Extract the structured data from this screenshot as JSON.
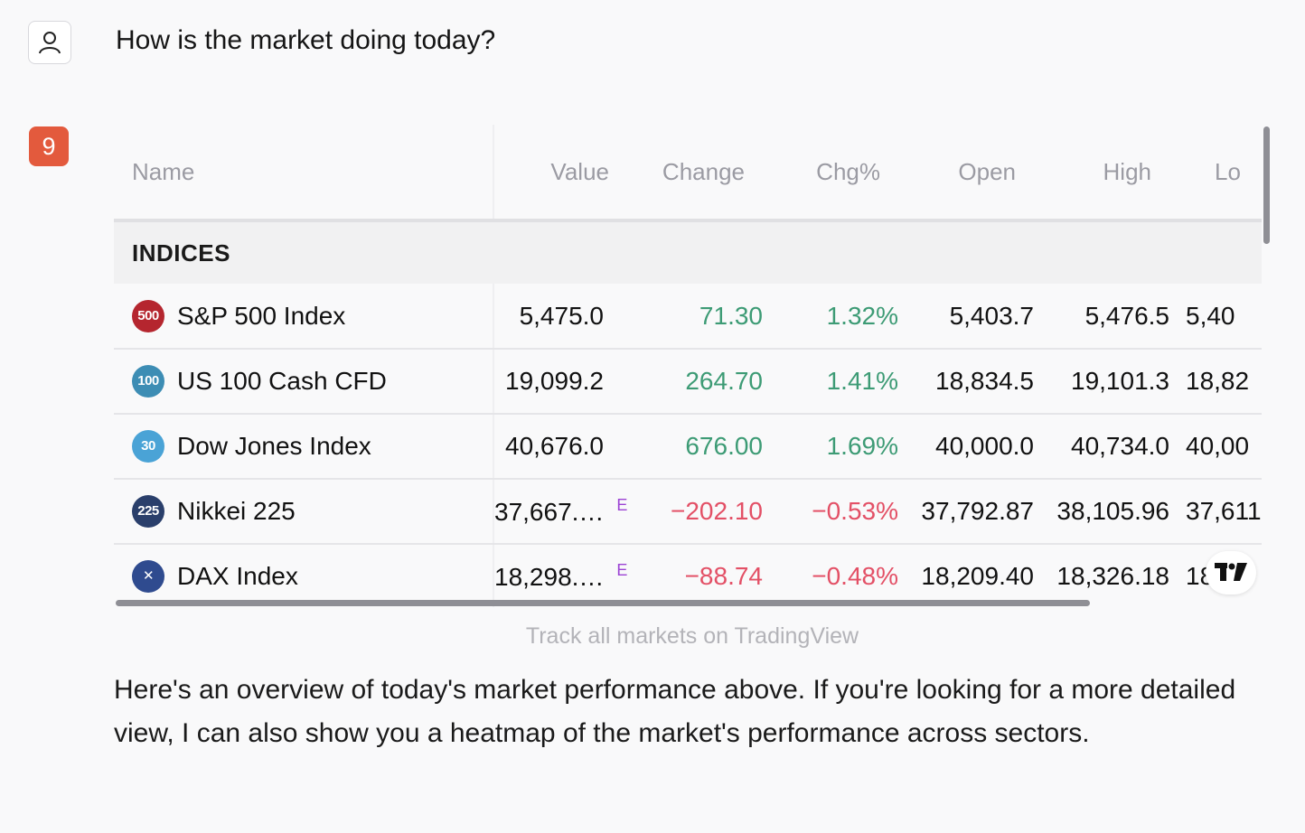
{
  "user": {
    "avatar_icon": "user-icon",
    "question": "How is the market doing today?"
  },
  "assistant": {
    "badge_label": "9"
  },
  "widget": {
    "columns": [
      "Name",
      "Value",
      "Change",
      "Chg%",
      "Open",
      "High",
      "Lo"
    ],
    "group_label": "INDICES",
    "rows": [
      {
        "symbol": "500",
        "symbol_color": "#b5262f",
        "name": "S&P 500 Index",
        "value": "5,475.0",
        "e": "",
        "change": "71.30",
        "chg_pct": "1.32%",
        "open": "5,403.7",
        "high": "5,476.5",
        "low": "5,40",
        "dir": "pos"
      },
      {
        "symbol": "100",
        "symbol_color": "#3d8db4",
        "name": "US 100 Cash CFD",
        "value": "19,099.2",
        "e": "",
        "change": "264.70",
        "chg_pct": "1.41%",
        "open": "18,834.5",
        "high": "19,101.3",
        "low": "18,82",
        "dir": "pos"
      },
      {
        "symbol": "30",
        "symbol_color": "#4aa3d6",
        "name": "Dow Jones Index",
        "value": "40,676.0",
        "e": "",
        "change": "676.00",
        "chg_pct": "1.69%",
        "open": "40,000.0",
        "high": "40,734.0",
        "low": "40,00",
        "dir": "pos"
      },
      {
        "symbol": "225",
        "symbol_color": "#2a3f6b",
        "name": "Nikkei 225",
        "value": "37,667.…",
        "e": "E",
        "change": "−202.10",
        "chg_pct": "−0.53%",
        "open": "37,792.87",
        "high": "38,105.96",
        "low": "37,611",
        "dir": "neg"
      },
      {
        "symbol": "✕",
        "symbol_color": "#2f4b8f",
        "name": "DAX Index",
        "value": "18,298.…",
        "e": "E",
        "change": "−88.74",
        "chg_pct": "−0.48%",
        "open": "18,209.40",
        "high": "18,326.18",
        "low": "18",
        "dir": "neg"
      }
    ],
    "tradingview_logo": "tradingview-logo-icon",
    "track_link": "Track all markets on TradingView"
  },
  "answer": "Here's an overview of today's market performance above. If you're looking for a more detailed view, I can also show you a heatmap of the market's performance across sectors.",
  "colors": {
    "positive": "#3d9b75",
    "negative": "#e35066",
    "badge": "#e35a3d"
  }
}
